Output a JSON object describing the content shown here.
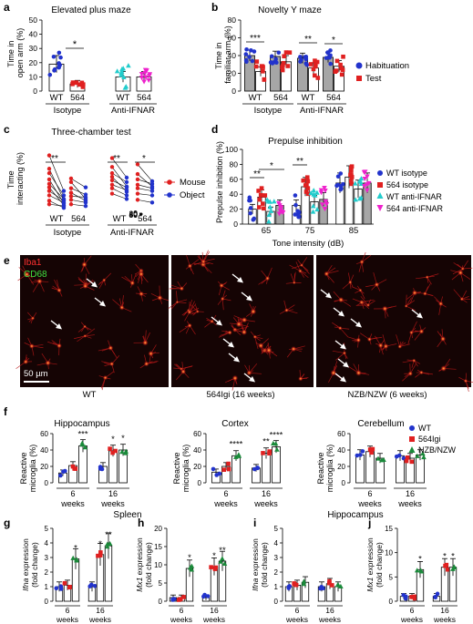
{
  "colors": {
    "wt": "#2233cc",
    "iso564": "#e02020",
    "wt_ifnar": "#22cccc",
    "ifnar564": "#ee22cc",
    "nzb": "#1a8a3a",
    "gray_bar": "#a6a6a6",
    "mouse": "#e02020",
    "object": "#2233cc"
  },
  "panels": {
    "a": {
      "letter": "a",
      "title": "Elevated plus maze",
      "ylabel": [
        "Time in",
        "open arm (%)"
      ],
      "groups": [
        "WT",
        "564",
        "WT",
        "564"
      ],
      "treatments": [
        "Isotype",
        "Anti-IFNAR"
      ],
      "sig": "*",
      "chart_data": {
        "type": "bar",
        "categories": [
          "WT Isotype",
          "564 Isotype",
          "WT Anti-IFNAR",
          "564 Anti-IFNAR"
        ],
        "values": [
          19,
          5,
          10,
          10
        ],
        "ylim": [
          0,
          50
        ],
        "yticks": [
          0,
          10,
          20,
          30,
          40,
          50
        ]
      }
    },
    "b": {
      "letter": "b",
      "title": "Novelty Y maze",
      "ylabel": [
        "Time in",
        "familiar arm (%)"
      ],
      "groups": [
        "WT",
        "564",
        "WT",
        "564"
      ],
      "treatments": [
        "Isotype",
        "Anti-IFNAR"
      ],
      "sigs": [
        "***",
        "**",
        "*"
      ],
      "legend": [
        "Habituation",
        "Test"
      ],
      "chart_data": {
        "type": "bar",
        "categories": [
          "WT Isotype",
          "564 Isotype",
          "WT Anti-IFNAR",
          "564 Anti-IFNAR"
        ],
        "series": [
          {
            "name": "Habituation",
            "values": [
              40,
              39,
              37,
              38
            ]
          },
          {
            "name": "Test",
            "values": [
              22,
              33,
              26,
              28
            ]
          }
        ],
        "ylim": [
          0,
          80
        ],
        "yticks": [
          0,
          20,
          40,
          60,
          80
        ]
      }
    },
    "c": {
      "letter": "c",
      "title": "Three-chamber test",
      "ylabel": [
        "Time",
        "interacting (%)"
      ],
      "groups": [
        "WT",
        "564",
        "WT",
        "564"
      ],
      "treatments": [
        "Isotype",
        "Anti-IFNAR"
      ],
      "sigs": [
        "**",
        "**",
        "*"
      ],
      "legend": [
        "Mouse",
        "Object"
      ],
      "chart_data": {
        "type": "line",
        "categories": [
          "WT Isotype",
          "564 Isotype",
          "WT Anti-IFNAR",
          "564 Anti-IFNAR"
        ],
        "series": [
          {
            "name": "Mouse",
            "values": [
              [
                65,
                50,
                45,
                38,
                33,
                29,
                25,
                20,
                14,
                10
              ],
              [
                39,
                35,
                28,
                23,
                19,
                15,
                10
              ],
              [
                62,
                52,
                45,
                41,
                37,
                32,
                28,
                22
              ],
              [
                55,
                44,
                38,
                32,
                28,
                22,
                15
              ]
            ]
          },
          {
            "name": "Object",
            "values": [
              [
                25,
                15,
                20,
                11,
                16,
                9,
                14,
                12,
                6,
                8
              ],
              [
                29,
                16,
                21,
                14,
                18,
                12,
                8
              ],
              [
                40,
                30,
                35,
                24,
                29,
                26,
                20,
                16
              ],
              [
                36,
                30,
                33,
                28,
                25,
                20,
                12
              ]
            ]
          }
        ],
        "ylim": [
          0,
          80
        ],
        "yticks": [
          0,
          20,
          40,
          60,
          80
        ]
      }
    },
    "d": {
      "letter": "d",
      "title": "Prepulse inhibition",
      "ylabel": "Prepulse inhibition (%)",
      "xlabel": "Tone intensity (dB)",
      "tone_labels": [
        "65",
        "75",
        "85"
      ],
      "sigs": [
        "**",
        "*",
        "**"
      ],
      "legend": [
        "WT isotype",
        "564 isotype",
        "WT anti-IFNAR",
        "564 anti-IFNAR"
      ],
      "chart_data": {
        "type": "bar",
        "categories": [
          "65",
          "75",
          "85"
        ],
        "series": [
          {
            "name": "WT isotype",
            "values": [
              20,
              25,
              55
            ]
          },
          {
            "name": "564 isotype",
            "values": [
              36,
              50,
              63
            ]
          },
          {
            "name": "WT anti-IFNAR",
            "values": [
              17,
              30,
              47
            ]
          },
          {
            "name": "564 anti-IFNAR",
            "values": [
              25,
              33,
              55
            ]
          }
        ],
        "ylim": [
          0,
          100
        ],
        "yticks": [
          0,
          20,
          40,
          60,
          80,
          100
        ]
      }
    },
    "e": {
      "letter": "e",
      "stain1": "Iba1",
      "stain2": "CD68",
      "scale": "50 µm",
      "labels": [
        "WT",
        "564Igi (16 weeks)",
        "NZB/NZW (6 weeks)"
      ]
    },
    "f": {
      "letter": "f",
      "ylabel": [
        "Reactive",
        "microglia (%)"
      ],
      "ages": [
        "6",
        "16"
      ],
      "age_unit": "weeks",
      "legend": [
        "WT",
        "564Igi",
        "NZB/NZW"
      ],
      "charts": [
        {
          "title": "Hippocampus",
          "sigs": [
            "***",
            "*",
            "*"
          ],
          "chart_data": {
            "type": "bar",
            "categories": [
              "6 weeks",
              "16 weeks"
            ],
            "series": [
              {
                "name": "WT",
                "values": [
                  12,
                  20
                ]
              },
              {
                "name": "564Igi",
                "values": [
                  21,
                  39
                ]
              },
              {
                "name": "NZB/NZW",
                "values": [
                  45,
                  40
                ]
              }
            ],
            "ylim": [
              0,
              60
            ],
            "yticks": [
              0,
              20,
              40,
              60
            ]
          }
        },
        {
          "title": "Cortex",
          "sigs": [
            "****",
            "**",
            "****"
          ],
          "chart_data": {
            "type": "bar",
            "categories": [
              "6 weeks",
              "16 weeks"
            ],
            "series": [
              {
                "name": "WT",
                "values": [
                  13,
                  18
                ]
              },
              {
                "name": "564Igi",
                "values": [
                  20,
                  36
                ]
              },
              {
                "name": "NZB/NZW",
                "values": [
                  33,
                  44
                ]
              }
            ],
            "ylim": [
              0,
              60
            ],
            "yticks": [
              0,
              20,
              40,
              60
            ]
          }
        },
        {
          "title": "Cerebellum",
          "sigs": [],
          "chart_data": {
            "type": "bar",
            "categories": [
              "6 weeks",
              "16 weeks"
            ],
            "series": [
              {
                "name": "WT",
                "values": [
                  34,
                  33
                ]
              },
              {
                "name": "564Igi",
                "values": [
                  38,
                  30
                ]
              },
              {
                "name": "NZB/NZW",
                "values": [
                  30,
                  34
                ]
              }
            ],
            "ylim": [
              0,
              60
            ],
            "yticks": [
              0,
              20,
              40,
              60
            ]
          }
        }
      ]
    },
    "ghij": {
      "spleen_title": "Spleen",
      "hippocampus_title": "Hippocampus",
      "ages": [
        "6",
        "16"
      ],
      "age_unit": "weeks",
      "charts": [
        {
          "letter": "g",
          "gene": "Ifna",
          "ylabel_rest": " expression",
          "ylabel2": "(fold change)",
          "sigs": [
            "*",
            "*",
            "**"
          ],
          "chart_data": {
            "type": "bar",
            "categories": [
              "6 weeks",
              "16 weeks"
            ],
            "series": [
              {
                "name": "WT",
                "values": [
                  1,
                  1
                ]
              },
              {
                "name": "564Igi",
                "values": [
                  1.1,
                  3.2
                ]
              },
              {
                "name": "NZB/NZW",
                "values": [
                  2.9,
                  3.8
                ]
              }
            ],
            "ylim": [
              0,
              5
            ],
            "yticks": [
              0,
              1,
              2,
              3,
              4,
              5
            ]
          }
        },
        {
          "letter": "h",
          "gene": "Mx1",
          "ylabel_rest": " expression",
          "ylabel2": "(fold change)",
          "sigs": [
            "*",
            "*",
            "**"
          ],
          "chart_data": {
            "type": "bar",
            "categories": [
              "6 weeks",
              "16 weeks"
            ],
            "series": [
              {
                "name": "WT",
                "values": [
                  1,
                  1
                ]
              },
              {
                "name": "564Igi",
                "values": [
                  1,
                  9.5
                ]
              },
              {
                "name": "NZB/NZW",
                "values": [
                  9,
                  11
                ]
              }
            ],
            "ylim": [
              0,
              20
            ],
            "yticks": [
              0,
              5,
              10,
              15,
              20
            ]
          }
        },
        {
          "letter": "i",
          "gene": "Ifna",
          "ylabel_rest": " expression",
          "ylabel2": "(fold change)",
          "sigs": [],
          "chart_data": {
            "type": "bar",
            "categories": [
              "6 weeks",
              "16 weeks"
            ],
            "series": [
              {
                "name": "WT",
                "values": [
                  1,
                  1
                ]
              },
              {
                "name": "564Igi",
                "values": [
                  1.1,
                  1.2
                ]
              },
              {
                "name": "NZB/NZW",
                "values": [
                  1.3,
                  1.0
                ]
              }
            ],
            "ylim": [
              0,
              5
            ],
            "yticks": [
              0,
              1,
              2,
              3,
              4,
              5
            ]
          }
        },
        {
          "letter": "j",
          "gene": "Mx1",
          "ylabel_rest": " expression",
          "ylabel2": "(fold change)",
          "sigs": [
            "*",
            "*",
            "*"
          ],
          "chart_data": {
            "type": "bar",
            "categories": [
              "6 weeks",
              "16 weeks"
            ],
            "series": [
              {
                "name": "WT",
                "values": [
                  1,
                  1
                ]
              },
              {
                "name": "564Igi",
                "values": [
                  1,
                  7
                ]
              },
              {
                "name": "NZB/NZW",
                "values": [
                  6.5,
                  7
                ]
              }
            ],
            "ylim": [
              0,
              15
            ],
            "yticks": [
              0,
              5,
              10,
              15
            ]
          }
        }
      ]
    }
  }
}
